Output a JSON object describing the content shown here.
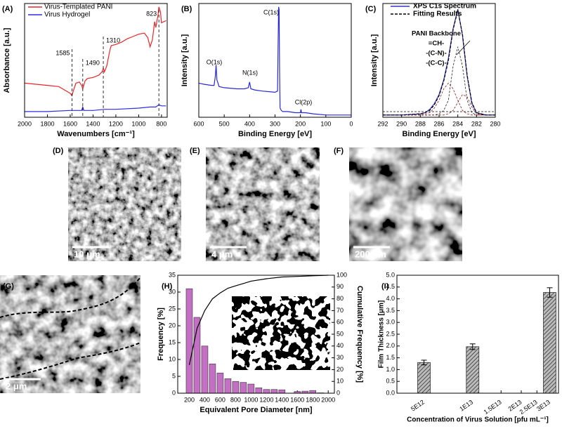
{
  "chart_data": [
    {
      "type": "line",
      "panel_label": "(A)",
      "xlabel": "Wavenumbers [cm⁻¹]",
      "ylabel": "Absorbance [a.u.]",
      "xlim": [
        2000,
        750
      ],
      "ylim": [
        0,
        1
      ],
      "xticks": [
        2000,
        1800,
        1600,
        1400,
        1200,
        1000,
        800
      ],
      "markers": [
        1585,
        1490,
        1310,
        823
      ],
      "series": [
        {
          "name": "Virus-Templated PANI",
          "color": "#e8262a",
          "x": [
            2000,
            1900,
            1800,
            1700,
            1650,
            1600,
            1585,
            1570,
            1550,
            1520,
            1500,
            1490,
            1470,
            1450,
            1400,
            1350,
            1320,
            1310,
            1300,
            1280,
            1250,
            1240,
            1200,
            1150,
            1100,
            1050,
            1000,
            950,
            920,
            900,
            880,
            860,
            850,
            830,
            823,
            810,
            800,
            760
          ],
          "values": [
            0.3,
            0.29,
            0.28,
            0.27,
            0.24,
            0.21,
            0.19,
            0.24,
            0.3,
            0.31,
            0.28,
            0.25,
            0.32,
            0.34,
            0.35,
            0.37,
            0.4,
            0.43,
            0.4,
            0.45,
            0.6,
            0.63,
            0.64,
            0.66,
            0.69,
            0.71,
            0.73,
            0.74,
            0.7,
            0.62,
            0.68,
            0.84,
            0.79,
            0.9,
            0.97,
            0.93,
            0.83,
            0.85
          ]
        },
        {
          "name": "Virus Hydrogel",
          "color": "#2e2ee0",
          "x": [
            2000,
            1800,
            1600,
            1500,
            1490,
            1480,
            1400,
            1300,
            1200,
            1000,
            900,
            850,
            823,
            800,
            760
          ],
          "values": [
            0.05,
            0.05,
            0.06,
            0.06,
            0.09,
            0.06,
            0.06,
            0.07,
            0.07,
            0.08,
            0.09,
            0.09,
            0.11,
            0.1,
            0.1
          ]
        }
      ]
    },
    {
      "type": "line",
      "panel_label": "(B)",
      "xlabel": "Binding Energy [eV]",
      "ylabel": "Intensity [a.u.]",
      "xlim": [
        600,
        0
      ],
      "ylim": [
        0,
        1
      ],
      "xticks": [
        600,
        500,
        400,
        300,
        200,
        100,
        0
      ],
      "annotations": [
        "O(1s)",
        "N(1s)",
        "C(1s)",
        "Cl(2p)"
      ],
      "series": [
        {
          "color": "#2a2ad4",
          "x": [
            600,
            580,
            550,
            540,
            535,
            532,
            529,
            520,
            500,
            450,
            420,
            405,
            400,
            395,
            380,
            350,
            300,
            290,
            288,
            286,
            284,
            282,
            280,
            275,
            270,
            250,
            220,
            200,
            198,
            196,
            180,
            150,
            100,
            50,
            0
          ],
          "values": [
            0.3,
            0.29,
            0.28,
            0.28,
            0.36,
            0.46,
            0.33,
            0.27,
            0.26,
            0.25,
            0.25,
            0.26,
            0.31,
            0.25,
            0.24,
            0.23,
            0.22,
            0.23,
            0.6,
            0.97,
            0.95,
            0.4,
            0.08,
            0.06,
            0.05,
            0.05,
            0.04,
            0.04,
            0.07,
            0.04,
            0.04,
            0.03,
            0.02,
            0.02,
            0.02
          ]
        }
      ]
    },
    {
      "type": "line",
      "panel_label": "(C)",
      "xlabel": "Binding Energy [eV]",
      "ylabel": "Intensity [a.u.]",
      "xlim": [
        292,
        280
      ],
      "ylim": [
        0,
        1
      ],
      "xticks": [
        292,
        290,
        288,
        286,
        284,
        282,
        280
      ],
      "annotations": [
        "PANI Backbone",
        "=CH-",
        "-(C-N)-",
        "-(C-C)-"
      ],
      "x": [
        292,
        290,
        288,
        287.5,
        287,
        286.5,
        286,
        285.5,
        285,
        284.5,
        284,
        283.5,
        283,
        282.5,
        282,
        281,
        280
      ],
      "series": [
        {
          "name": "XPS C1s Spectrum",
          "color": "#3333cc",
          "values": [
            0.02,
            0.02,
            0.03,
            0.04,
            0.07,
            0.12,
            0.2,
            0.33,
            0.52,
            0.78,
            0.95,
            0.72,
            0.36,
            0.12,
            0.04,
            0.02,
            0.02
          ]
        },
        {
          "name": "Fitting Results",
          "color": "#000000",
          "dash": true,
          "values": [
            0.02,
            0.02,
            0.03,
            0.04,
            0.06,
            0.11,
            0.19,
            0.32,
            0.5,
            0.77,
            0.94,
            0.73,
            0.37,
            0.13,
            0.04,
            0.02,
            0.02
          ]
        }
      ],
      "components": [
        {
          "color": "#222222",
          "values": [
            0.02,
            0.02,
            0.02,
            0.02,
            0.02,
            0.02,
            0.03,
            0.06,
            0.15,
            0.45,
            0.62,
            0.45,
            0.15,
            0.04,
            0.02,
            0.02,
            0.02
          ]
        },
        {
          "color": "#8b1a1a",
          "values": [
            0.02,
            0.02,
            0.02,
            0.03,
            0.04,
            0.08,
            0.15,
            0.25,
            0.3,
            0.25,
            0.15,
            0.06,
            0.03,
            0.02,
            0.02,
            0.02,
            0.02
          ]
        },
        {
          "color": "#8b1a1a",
          "values": [
            0.02,
            0.02,
            0.02,
            0.02,
            0.02,
            0.02,
            0.02,
            0.02,
            0.03,
            0.06,
            0.13,
            0.2,
            0.18,
            0.09,
            0.03,
            0.02,
            0.02
          ]
        }
      ]
    },
    {
      "type": "image",
      "panel_label": "(D)",
      "scale_bar": "10 μm"
    },
    {
      "type": "image",
      "panel_label": "(E)",
      "scale_bar": "4 μm"
    },
    {
      "type": "image",
      "panel_label": "(F)",
      "scale_bar": "200 nm"
    },
    {
      "type": "image",
      "panel_label": "(G)",
      "scale_bar": "2 μm"
    },
    {
      "type": "histogram",
      "panel_label": "(H)",
      "xlabel": "Equivalent Pore Diameter [nm]",
      "ylabel": "Frequency [%]",
      "y2label": "Cumulative Frequency [%]",
      "xlim": [
        50,
        2080
      ],
      "xticks": [
        200,
        400,
        600,
        800,
        1000,
        1200,
        1400,
        1600,
        1800,
        2000
      ],
      "ylim": [
        0,
        35
      ],
      "yticks": [
        0,
        5,
        10,
        15,
        20,
        25,
        30,
        35
      ],
      "y2lim": [
        0,
        100
      ],
      "y2ticks": [
        0,
        10,
        20,
        30,
        40,
        50,
        60,
        70,
        80,
        90,
        100
      ],
      "bins": [
        150,
        250,
        350,
        450,
        550,
        650,
        750,
        850,
        950,
        1050,
        1150,
        1250,
        1350,
        1450,
        1550,
        1650,
        1750,
        1850,
        1950
      ],
      "counts": [
        31,
        22.5,
        14,
        8.7,
        6,
        4.3,
        3.5,
        3.2,
        2.7,
        1.6,
        1.1,
        1.1,
        1,
        0,
        0.5,
        0.6,
        0.8,
        0.1
      ],
      "color": "#c36fc3",
      "line": {
        "axis": "y2",
        "color": "#000000",
        "x": [
          200,
          300,
          400,
          500,
          600,
          700,
          800,
          900,
          1000,
          1200,
          1400,
          1600,
          1800,
          2000
        ],
        "values": [
          24,
          55,
          70,
          80,
          85,
          89,
          91,
          93,
          95,
          97,
          98.5,
          99,
          99.5,
          100
        ]
      }
    },
    {
      "type": "bar",
      "panel_label": "(I)",
      "xlabel": "Concentration of Virus Solution [pfu mL⁻¹]",
      "ylabel": "Film Thickness [μm]",
      "xscale": "log",
      "xlim": [
        3400000000000.0,
        34000000000000.0
      ],
      "xticks": [
        {
          "value": 5000000000000.0,
          "label": "5E12"
        },
        {
          "value": 10000000000000.0,
          "label": "1E13"
        },
        {
          "value": 15000000000000.0,
          "label": "1.5E13"
        },
        {
          "value": 20000000000000.0,
          "label": "2E13"
        },
        {
          "value": 25000000000000.0,
          "label": "2.5E13"
        },
        {
          "value": 30000000000000.0,
          "label": "3E13"
        }
      ],
      "ylim": [
        0,
        5
      ],
      "yticks": [
        {
          "value": 0,
          "label": "0.0"
        },
        {
          "value": 0.5,
          "label": "0.5"
        },
        {
          "value": 1,
          "label": "1.0"
        },
        {
          "value": 1.5,
          "label": "1.5"
        },
        {
          "value": 2,
          "label": "2.0"
        },
        {
          "value": 2.5,
          "label": "2.5"
        },
        {
          "value": 3,
          "label": "3.0"
        },
        {
          "value": 3.5,
          "label": "3.5"
        },
        {
          "value": 4,
          "label": "4.0"
        },
        {
          "value": 4.5,
          "label": "4.5"
        },
        {
          "value": 5,
          "label": "5.0"
        }
      ],
      "x": [
        5000000000000.0,
        10000000000000.0,
        30000000000000.0
      ],
      "values": [
        1.3,
        1.97,
        4.27
      ],
      "errors": [
        0.1,
        0.12,
        0.2
      ],
      "color": "#333333"
    }
  ]
}
